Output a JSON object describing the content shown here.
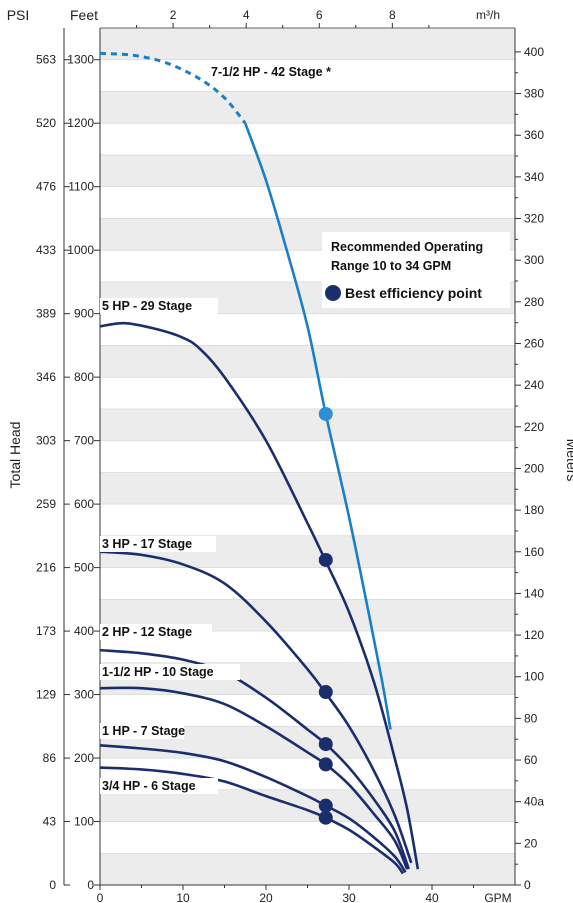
{
  "chart_data": {
    "type": "line",
    "axes": {
      "x_bottom": {
        "unit_label": "GPM",
        "ticks": [
          "0",
          "10",
          "20",
          "30",
          "40"
        ],
        "range": [
          0,
          50
        ]
      },
      "x_top": {
        "unit_label": "m³/h",
        "ticks": [
          "2",
          "4",
          "6",
          "8"
        ]
      },
      "y_feet": {
        "unit_label": "Feet",
        "ticks": [
          "0",
          "100",
          "200",
          "300",
          "400",
          "500",
          "600",
          "700",
          "800",
          "900",
          "1000",
          "1100",
          "1200",
          "1300"
        ],
        "range": [
          0,
          1350
        ]
      },
      "y_psi": {
        "unit_label": "PSI",
        "ticks": [
          "0",
          "43",
          "86",
          "129",
          "173",
          "216",
          "259",
          "303",
          "346",
          "389",
          "433",
          "476",
          "520",
          "563"
        ]
      },
      "y_meters": {
        "ticks": [
          "0",
          "20",
          "40a",
          "60",
          "80",
          "100",
          "120",
          "140",
          "160",
          "180",
          "200",
          "220",
          "240",
          "260",
          "280",
          "300",
          "320",
          "340",
          "360",
          "380",
          "400"
        ]
      },
      "left_title": "Total Head",
      "right_title": "Meters"
    },
    "series": [
      {
        "name": "7-1/2 HP - 42 Stage *",
        "color": "#1b7fc4",
        "dashed_until_gpm": 17.5,
        "points": [
          [
            0,
            1310
          ],
          [
            4,
            1307
          ],
          [
            8,
            1295
          ],
          [
            12,
            1270
          ],
          [
            15,
            1240
          ],
          [
            17.5,
            1200
          ],
          [
            20,
            1110
          ],
          [
            22.5,
            1000
          ],
          [
            25,
            880
          ],
          [
            27.2,
            742
          ],
          [
            30,
            580
          ],
          [
            32.5,
            420
          ],
          [
            34,
            320
          ],
          [
            35,
            245
          ]
        ],
        "bep": [
          27.2,
          742
        ],
        "bep_color": "#2e8fd6"
      },
      {
        "name": "5 HP - 29 Stage",
        "color": "#1a2e6e",
        "points": [
          [
            0,
            880
          ],
          [
            3,
            885
          ],
          [
            7,
            875
          ],
          [
            10,
            862
          ],
          [
            12,
            845
          ],
          [
            15,
            800
          ],
          [
            20,
            700
          ],
          [
            25,
            570
          ],
          [
            27.2,
            510
          ],
          [
            30,
            430
          ],
          [
            33,
            320
          ],
          [
            35.5,
            200
          ],
          [
            37,
            120
          ],
          [
            38.3,
            25
          ]
        ],
        "bep": [
          27.2,
          512
        ]
      },
      {
        "name": "3 HP - 17 Stage",
        "color": "#1a2e6e",
        "points": [
          [
            0,
            525
          ],
          [
            5,
            520
          ],
          [
            10,
            505
          ],
          [
            15,
            475
          ],
          [
            20,
            415
          ],
          [
            25,
            340
          ],
          [
            27.2,
            302
          ],
          [
            30,
            250
          ],
          [
            33,
            180
          ],
          [
            35.5,
            110
          ],
          [
            37.5,
            35
          ]
        ],
        "bep": [
          27.2,
          304
        ]
      },
      {
        "name": "2 HP - 12 Stage",
        "color": "#1a2e6e",
        "points": [
          [
            0,
            370
          ],
          [
            5,
            365
          ],
          [
            10,
            355
          ],
          [
            15,
            335
          ],
          [
            20,
            295
          ],
          [
            25,
            245
          ],
          [
            27.2,
            222
          ],
          [
            30,
            185
          ],
          [
            33,
            135
          ],
          [
            35.5,
            85
          ],
          [
            37.2,
            25
          ]
        ],
        "bep": [
          27.2,
          222
        ]
      },
      {
        "name": "1-1/2 HP - 10 Stage",
        "color": "#1a2e6e",
        "points": [
          [
            0,
            310
          ],
          [
            5,
            310
          ],
          [
            10,
            302
          ],
          [
            15,
            285
          ],
          [
            20,
            250
          ],
          [
            25,
            209
          ],
          [
            27.2,
            190
          ],
          [
            30,
            158
          ],
          [
            33,
            112
          ],
          [
            35.5,
            70
          ],
          [
            37,
            25
          ]
        ],
        "bep": [
          27.2,
          190
        ]
      },
      {
        "name": "1 HP - 7 Stage",
        "color": "#1a2e6e",
        "points": [
          [
            0,
            220
          ],
          [
            5,
            215
          ],
          [
            10,
            208
          ],
          [
            15,
            195
          ],
          [
            20,
            170
          ],
          [
            25,
            140
          ],
          [
            27.2,
            125
          ],
          [
            30,
            105
          ],
          [
            33,
            75
          ],
          [
            35.5,
            45
          ],
          [
            36.8,
            20
          ]
        ],
        "bep": [
          27.2,
          125
        ]
      },
      {
        "name": "3/4 HP - 6 Stage",
        "color": "#1a2e6e",
        "points": [
          [
            0,
            185
          ],
          [
            5,
            182
          ],
          [
            10,
            175
          ],
          [
            15,
            163
          ],
          [
            20,
            140
          ],
          [
            25,
            118
          ],
          [
            27.2,
            106
          ],
          [
            30,
            87
          ],
          [
            33,
            60
          ],
          [
            35.5,
            35
          ],
          [
            36.5,
            18
          ]
        ],
        "bep": [
          27.2,
          106
        ]
      }
    ],
    "annotations": {
      "legend_lines": [
        "Recommended Operating",
        "Range 10 to 34 GPM"
      ],
      "legend_bep": "Best efficiency point",
      "legend_bep_color": "#1a2e6e",
      "legend_placement": "upper-right"
    },
    "grid": "alternating horizontal bands"
  }
}
